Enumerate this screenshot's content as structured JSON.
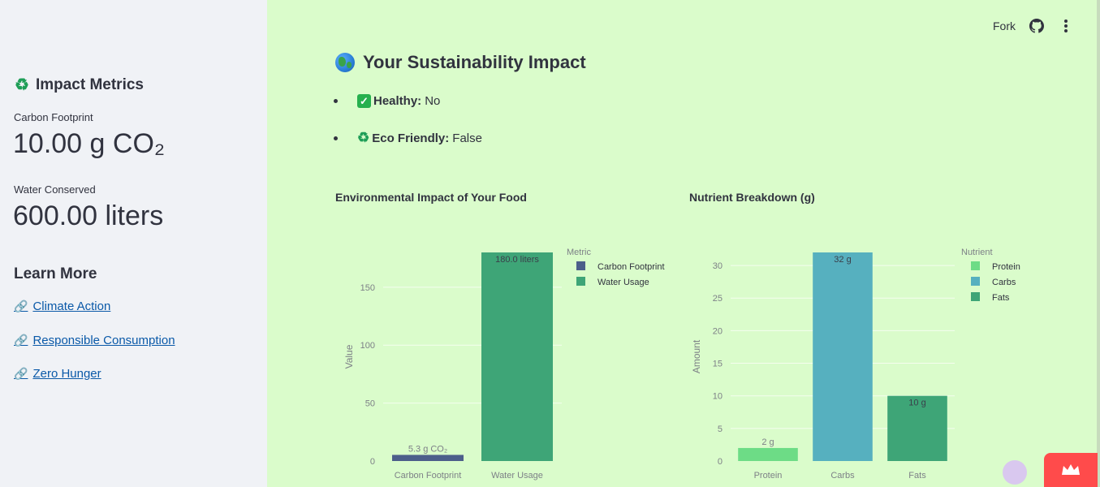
{
  "sidebar": {
    "heading": "Impact Metrics",
    "carbon_label": "Carbon Footprint",
    "carbon_value": "10.00 g CO₂",
    "water_label": "Water Conserved",
    "water_value": "600.00 liters",
    "learn_heading": "Learn More",
    "links": [
      "Climate Action",
      "Responsible Consumption",
      "Zero Hunger"
    ]
  },
  "header": {
    "fork_label": "Fork",
    "github_icon": "github-icon",
    "menu_icon": "kebab-menu-icon"
  },
  "main": {
    "title": "Your Sustainability Impact",
    "bullets": [
      {
        "key": "Healthy:",
        "value": "No"
      },
      {
        "key": "Eco Friendly:",
        "value": "False"
      }
    ]
  },
  "chart_data": [
    {
      "type": "bar",
      "title": "Environmental Impact of Your Food",
      "categories": [
        "Carbon Footprint",
        "Water Usage"
      ],
      "values": [
        5.3,
        180.0
      ],
      "data_labels": [
        "5.3 g CO₂",
        "180.0 liters"
      ],
      "colors": [
        "#4c5e8a",
        "#3ea577"
      ],
      "xlabel": "",
      "ylabel": "Value",
      "ylim": [
        0,
        180
      ],
      "yticks": [
        0,
        50,
        100,
        150
      ],
      "legend_title": "Metric",
      "legend": [
        "Carbon Footprint",
        "Water Usage"
      ],
      "legend_position": "top-right",
      "grid": true
    },
    {
      "type": "bar",
      "title": "Nutrient Breakdown (g)",
      "categories": [
        "Protein",
        "Carbs",
        "Fats"
      ],
      "values": [
        2,
        32,
        10
      ],
      "data_labels": [
        "2 g",
        "32 g",
        "10 g"
      ],
      "colors": [
        "#6ddc86",
        "#56b0bf",
        "#3ea577"
      ],
      "xlabel": "",
      "ylabel": "Amount",
      "ylim": [
        0,
        32
      ],
      "yticks": [
        0,
        5,
        10,
        15,
        20,
        25,
        30
      ],
      "legend_title": "Nutrient",
      "legend": [
        "Protein",
        "Carbs",
        "Fats"
      ],
      "legend_position": "top-right",
      "grid": true
    }
  ]
}
